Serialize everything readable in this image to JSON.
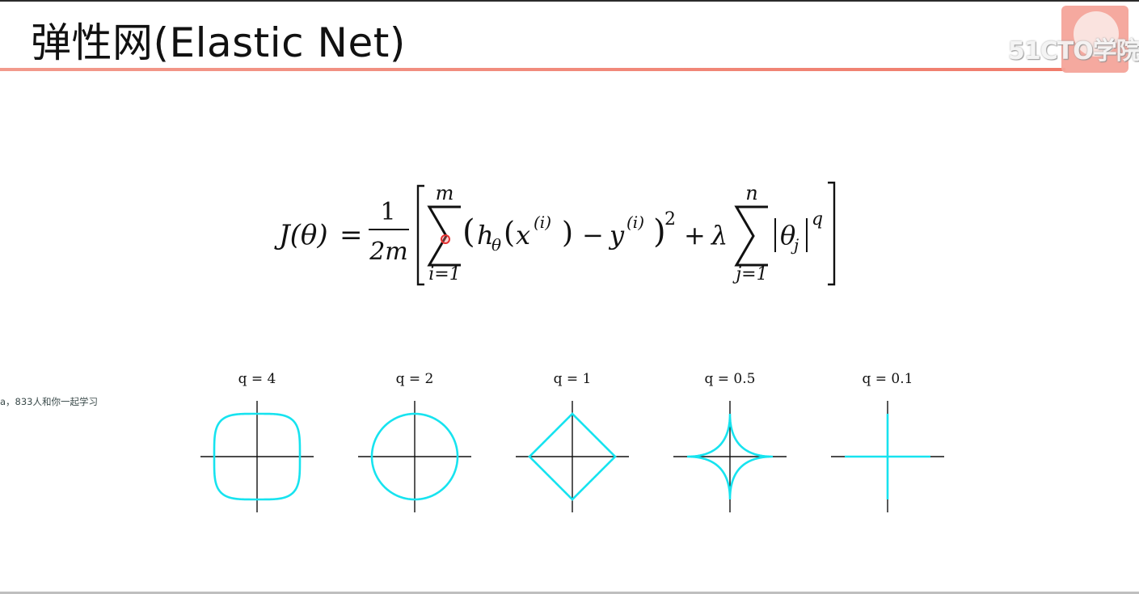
{
  "slide": {
    "title": "弹性网(Elastic Net)",
    "watermark": "51CTO学院",
    "side_notice": "a，833人和你一起学习"
  },
  "formula": {
    "lhs": "J(θ)",
    "equals": "=",
    "frac_num": "1",
    "frac_den": "2m",
    "sum1_upper": "m",
    "sum1_lower": "i=1",
    "h": "h",
    "h_sub": "θ",
    "x": "x",
    "x_sup": "(i)",
    "minus": "−",
    "y": "y",
    "y_sup": "(i)",
    "sq": "2",
    "plus": "+",
    "lambda": "λ",
    "sum2_upper": "n",
    "sum2_lower": "j=1",
    "theta": "θ",
    "theta_sub": "j",
    "q_exp": "q"
  },
  "plots": [
    {
      "label": "q = 4",
      "q": 4
    },
    {
      "label": "q = 2",
      "q": 2
    },
    {
      "label": "q = 1",
      "q": 1
    },
    {
      "label": "q = 0.5",
      "q": 0.5
    },
    {
      "label": "q = 0.1",
      "q": 0.1
    }
  ],
  "colors": {
    "accent_line": "#f07c6c",
    "curve": "#17e3ef",
    "cursor": "#e63030"
  }
}
